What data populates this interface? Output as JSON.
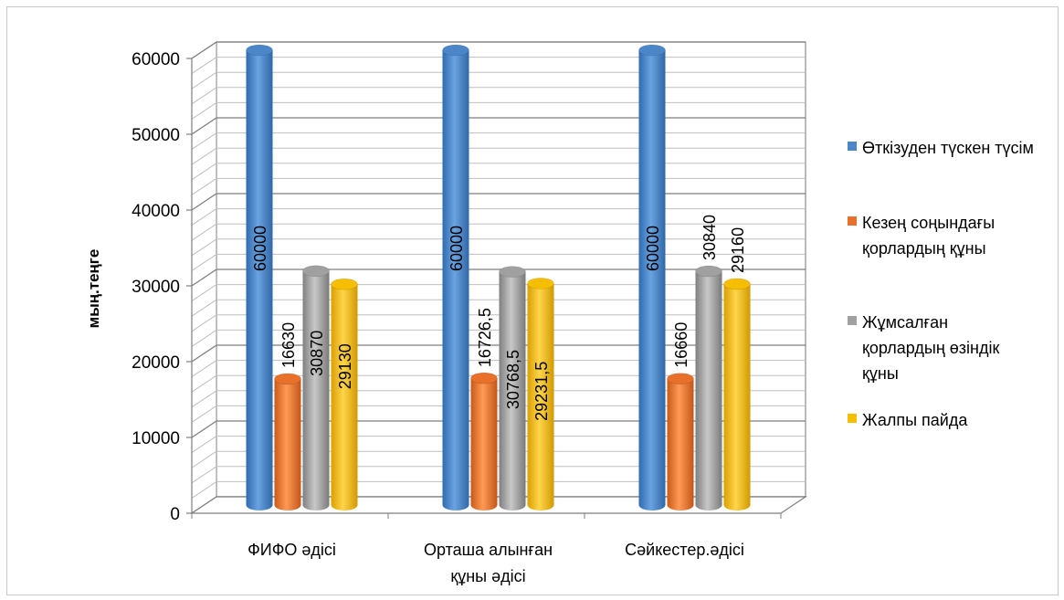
{
  "chart_data": {
    "type": "bar",
    "title": "",
    "xlabel": "",
    "ylabel": "мың.теңге",
    "ylim": [
      0,
      60000
    ],
    "yticks": [
      "0",
      "10000",
      "20000",
      "30000",
      "40000",
      "50000",
      "60000"
    ],
    "grid": true,
    "legend_position": "right",
    "categories": [
      "ФИФО әдісі",
      "Орташа алынған құны әдісі",
      "Сәйкестер.әдісі"
    ],
    "series": [
      {
        "name": "Өткізуден түскен түсім",
        "color": "#4a86c8",
        "values": [
          60000,
          60000,
          60000
        ],
        "labels": [
          "60000",
          "60000",
          "60000"
        ]
      },
      {
        "name": "Кезең соңындағы қорлардың құны",
        "color": "#e8702a",
        "values": [
          16630,
          16726.5,
          16660
        ],
        "labels": [
          "16630",
          "16726,5",
          "16660"
        ]
      },
      {
        "name": "Жұмсалған қорлардың өзіндік құны",
        "color": "#a0a0a0",
        "values": [
          30870,
          30768.5,
          30840
        ],
        "labels": [
          "30870",
          "30768,5",
          "30840"
        ]
      },
      {
        "name": "Жалпы пайда",
        "color": "#f5be00",
        "values": [
          29130,
          29231.5,
          29160
        ],
        "labels": [
          "29130",
          "29231,5",
          "29160"
        ]
      }
    ]
  }
}
